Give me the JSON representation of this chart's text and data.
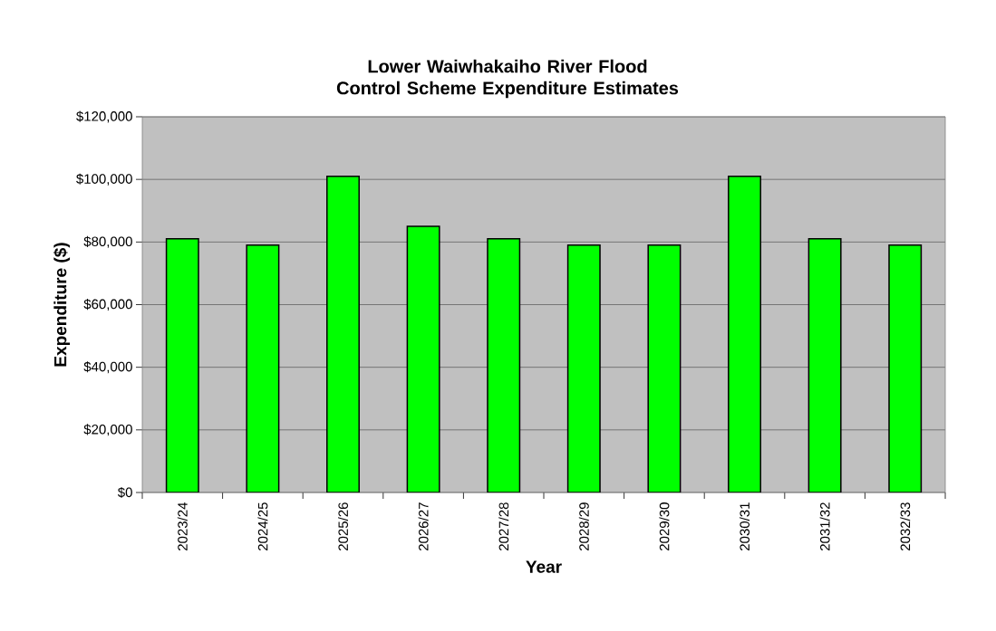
{
  "chart_data": {
    "type": "bar",
    "title": "Lower Waiwhakaiho River Flood Control Scheme Expenditure Estimates",
    "xlabel": "Year",
    "ylabel": "Expenditure ($)",
    "categories": [
      "2023/24",
      "2024/25",
      "2025/26",
      "2026/27",
      "2027/28",
      "2028/29",
      "2029/30",
      "2030/31",
      "2031/32",
      "2032/33"
    ],
    "values": [
      81000,
      79000,
      101000,
      85000,
      81000,
      79000,
      79000,
      101000,
      81000,
      79000
    ],
    "color": "#00ff00",
    "ylim": [
      0,
      120000
    ],
    "yticks": [
      {
        "value": 0,
        "label": "$0"
      },
      {
        "value": 20000,
        "label": "$20,000"
      },
      {
        "value": 40000,
        "label": "$40,000"
      },
      {
        "value": 60000,
        "label": "$60,000"
      },
      {
        "value": 80000,
        "label": "$80,000"
      },
      {
        "value": 100000,
        "label": "$100,000"
      },
      {
        "value": 120000,
        "label": "$120,000"
      }
    ],
    "grid": "y"
  }
}
